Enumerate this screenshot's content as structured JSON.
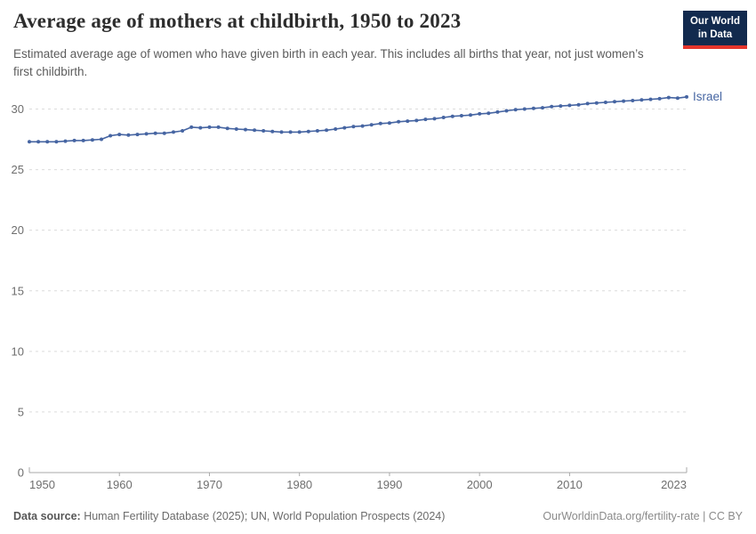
{
  "header": {
    "title": "Average age of mothers at childbirth, 1950 to 2023",
    "subtitle": "Estimated average age of women who have given birth in each year. This includes all births that year, not just women’s first childbirth.",
    "logo": {
      "line1": "Our World",
      "line2": "in Data",
      "bg_color": "#122A4E",
      "accent_color": "#E5352C"
    }
  },
  "chart_data": {
    "type": "line",
    "title": "Average age of mothers at childbirth, 1950 to 2023",
    "xlabel": "",
    "ylabel": "",
    "xlim": [
      1950,
      2023
    ],
    "ylim": [
      0,
      31.5
    ],
    "x_ticks": [
      1950,
      1960,
      1970,
      1980,
      1990,
      2000,
      2010,
      2023
    ],
    "y_ticks": [
      0,
      5,
      10,
      15,
      20,
      25,
      30
    ],
    "grid": "horizontal-dashed",
    "legend_position": "end-of-line-label",
    "series": [
      {
        "name": "Israel",
        "color": "#4665A2",
        "x_start": 1950,
        "x_step": 1,
        "values": [
          27.3,
          27.3,
          27.3,
          27.3,
          27.35,
          27.4,
          27.4,
          27.45,
          27.5,
          27.8,
          27.9,
          27.85,
          27.9,
          27.95,
          28.0,
          28.0,
          28.1,
          28.2,
          28.5,
          28.45,
          28.5,
          28.5,
          28.4,
          28.35,
          28.3,
          28.25,
          28.2,
          28.15,
          28.1,
          28.1,
          28.1,
          28.15,
          28.2,
          28.25,
          28.35,
          28.45,
          28.55,
          28.6,
          28.7,
          28.8,
          28.85,
          28.95,
          29.0,
          29.05,
          29.15,
          29.2,
          29.3,
          29.4,
          29.45,
          29.5,
          29.6,
          29.65,
          29.75,
          29.85,
          29.95,
          30.0,
          30.05,
          30.1,
          30.2,
          30.25,
          30.3,
          30.35,
          30.45,
          30.5,
          30.55,
          30.6,
          30.65,
          30.7,
          30.75,
          30.8,
          30.85,
          30.95,
          30.9,
          31.0
        ]
      }
    ]
  },
  "footer": {
    "datasource_label": "Data source:",
    "datasource_text": " Human Fertility Database (2025); UN, World Population Prospects (2024)",
    "attribution": "OurWorldinData.org/fertility-rate | CC BY"
  }
}
